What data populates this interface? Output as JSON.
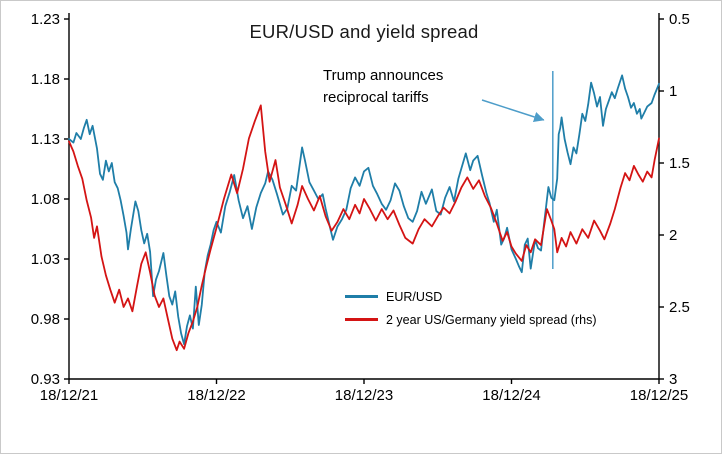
{
  "frame": {
    "background": "#ffffff",
    "border_color": "#c9c9c9"
  },
  "chart_data": {
    "type": "line",
    "title": "EUR/USD and yield spread",
    "grid": false,
    "legend_position": "inside-bottom-center",
    "x_axis": {
      "min": 0,
      "max": 4,
      "tick_positions": [
        0,
        1,
        2,
        3,
        4
      ],
      "tick_labels": [
        "18/12/21",
        "18/12/22",
        "18/12/23",
        "18/12/24",
        "18/12/25"
      ]
    },
    "left_axis": {
      "min": 0.93,
      "max": 1.23,
      "tick_values": [
        1.23,
        1.18,
        1.13,
        1.08,
        1.03,
        0.98,
        0.93
      ],
      "tick_labels": [
        "1.23",
        "1.18",
        "1.13",
        "1.08",
        "1.03",
        "0.98",
        "0.93"
      ]
    },
    "right_axis": {
      "min": 0.5,
      "max": 3,
      "inverted_display": true,
      "tick_values": [
        0.5,
        1,
        1.5,
        2,
        2.5,
        3
      ],
      "tick_labels": [
        "0.5",
        "1",
        "1.5",
        "2",
        "2.5",
        "3"
      ]
    },
    "annotation": {
      "line1": "Trump announces",
      "line2": "reciprocal tariffs",
      "event_x": 3.28,
      "color": "#4D9DC9"
    },
    "series": [
      {
        "name": "EUR/USD",
        "axis": "left",
        "color": "#1F7EA8",
        "points": [
          [
            0,
            1.13
          ],
          [
            0.03,
            1.127
          ],
          [
            0.05,
            1.135
          ],
          [
            0.08,
            1.13
          ],
          [
            0.1,
            1.139
          ],
          [
            0.12,
            1.146
          ],
          [
            0.14,
            1.134
          ],
          [
            0.16,
            1.141
          ],
          [
            0.19,
            1.122
          ],
          [
            0.21,
            1.101
          ],
          [
            0.23,
            1.096
          ],
          [
            0.25,
            1.112
          ],
          [
            0.27,
            1.103
          ],
          [
            0.29,
            1.11
          ],
          [
            0.31,
            1.094
          ],
          [
            0.33,
            1.089
          ],
          [
            0.35,
            1.079
          ],
          [
            0.37,
            1.066
          ],
          [
            0.39,
            1.052
          ],
          [
            0.4,
            1.038
          ],
          [
            0.42,
            1.055
          ],
          [
            0.45,
            1.078
          ],
          [
            0.47,
            1.07
          ],
          [
            0.49,
            1.054
          ],
          [
            0.51,
            1.043
          ],
          [
            0.53,
            1.051
          ],
          [
            0.55,
            1.036
          ],
          [
            0.57,
            0.999
          ],
          [
            0.59,
            1.013
          ],
          [
            0.61,
            1.02
          ],
          [
            0.64,
            1.035
          ],
          [
            0.66,
            1.016
          ],
          [
            0.68,
            0.999
          ],
          [
            0.7,
            0.992
          ],
          [
            0.72,
            1.003
          ],
          [
            0.74,
            0.982
          ],
          [
            0.76,
            0.968
          ],
          [
            0.78,
            0.959
          ],
          [
            0.8,
            0.974
          ],
          [
            0.82,
            0.983
          ],
          [
            0.84,
            0.972
          ],
          [
            0.86,
            1.007
          ],
          [
            0.88,
            0.975
          ],
          [
            0.9,
            0.992
          ],
          [
            0.92,
            1.019
          ],
          [
            0.94,
            1.033
          ],
          [
            0.96,
            1.042
          ],
          [
            0.98,
            1.054
          ],
          [
            1.0,
            1.061
          ],
          [
            1.03,
            1.052
          ],
          [
            1.06,
            1.074
          ],
          [
            1.09,
            1.086
          ],
          [
            1.12,
            1.1
          ],
          [
            1.15,
            1.079
          ],
          [
            1.18,
            1.064
          ],
          [
            1.21,
            1.074
          ],
          [
            1.24,
            1.055
          ],
          [
            1.27,
            1.073
          ],
          [
            1.3,
            1.085
          ],
          [
            1.33,
            1.093
          ],
          [
            1.35,
            1.103
          ],
          [
            1.38,
            1.096
          ],
          [
            1.41,
            1.084
          ],
          [
            1.45,
            1.067
          ],
          [
            1.48,
            1.072
          ],
          [
            1.51,
            1.091
          ],
          [
            1.54,
            1.087
          ],
          [
            1.58,
            1.123
          ],
          [
            1.6,
            1.112
          ],
          [
            1.63,
            1.094
          ],
          [
            1.66,
            1.087
          ],
          [
            1.69,
            1.08
          ],
          [
            1.72,
            1.084
          ],
          [
            1.74,
            1.072
          ],
          [
            1.77,
            1.056
          ],
          [
            1.79,
            1.046
          ],
          [
            1.82,
            1.057
          ],
          [
            1.85,
            1.063
          ],
          [
            1.88,
            1.071
          ],
          [
            1.91,
            1.089
          ],
          [
            1.94,
            1.098
          ],
          [
            1.97,
            1.091
          ],
          [
            2.0,
            1.103
          ],
          [
            2.03,
            1.106
          ],
          [
            2.06,
            1.091
          ],
          [
            2.09,
            1.084
          ],
          [
            2.12,
            1.076
          ],
          [
            2.15,
            1.071
          ],
          [
            2.18,
            1.079
          ],
          [
            2.21,
            1.093
          ],
          [
            2.24,
            1.087
          ],
          [
            2.27,
            1.074
          ],
          [
            2.3,
            1.064
          ],
          [
            2.33,
            1.061
          ],
          [
            2.36,
            1.07
          ],
          [
            2.39,
            1.086
          ],
          [
            2.42,
            1.076
          ],
          [
            2.46,
            1.088
          ],
          [
            2.49,
            1.07
          ],
          [
            2.52,
            1.067
          ],
          [
            2.55,
            1.081
          ],
          [
            2.58,
            1.09
          ],
          [
            2.61,
            1.078
          ],
          [
            2.64,
            1.097
          ],
          [
            2.69,
            1.118
          ],
          [
            2.72,
            1.104
          ],
          [
            2.74,
            1.112
          ],
          [
            2.77,
            1.116
          ],
          [
            2.8,
            1.1
          ],
          [
            2.83,
            1.085
          ],
          [
            2.85,
            1.077
          ],
          [
            2.88,
            1.061
          ],
          [
            2.9,
            1.071
          ],
          [
            2.93,
            1.042
          ],
          [
            2.95,
            1.047
          ],
          [
            2.97,
            1.056
          ],
          [
            3.0,
            1.038
          ],
          [
            3.03,
            1.03
          ],
          [
            3.05,
            1.024
          ],
          [
            3.07,
            1.019
          ],
          [
            3.09,
            1.042
          ],
          [
            3.11,
            1.047
          ],
          [
            3.13,
            1.022
          ],
          [
            3.16,
            1.046
          ],
          [
            3.18,
            1.039
          ],
          [
            3.2,
            1.037
          ],
          [
            3.22,
            1.059
          ],
          [
            3.25,
            1.09
          ],
          [
            3.27,
            1.081
          ],
          [
            3.29,
            1.079
          ],
          [
            3.31,
            1.097
          ],
          [
            3.32,
            1.134
          ],
          [
            3.33,
            1.139
          ],
          [
            3.34,
            1.148
          ],
          [
            3.36,
            1.13
          ],
          [
            3.38,
            1.119
          ],
          [
            3.4,
            1.109
          ],
          [
            3.42,
            1.123
          ],
          [
            3.44,
            1.118
          ],
          [
            3.46,
            1.134
          ],
          [
            3.48,
            1.151
          ],
          [
            3.5,
            1.145
          ],
          [
            3.52,
            1.159
          ],
          [
            3.54,
            1.177
          ],
          [
            3.56,
            1.168
          ],
          [
            3.58,
            1.157
          ],
          [
            3.6,
            1.165
          ],
          [
            3.62,
            1.141
          ],
          [
            3.64,
            1.155
          ],
          [
            3.66,
            1.162
          ],
          [
            3.68,
            1.169
          ],
          [
            3.7,
            1.164
          ],
          [
            3.72,
            1.172
          ],
          [
            3.75,
            1.183
          ],
          [
            3.77,
            1.172
          ],
          [
            3.79,
            1.165
          ],
          [
            3.81,
            1.156
          ],
          [
            3.83,
            1.16
          ],
          [
            3.85,
            1.151
          ],
          [
            3.87,
            1.155
          ],
          [
            3.88,
            1.147
          ],
          [
            3.9,
            1.152
          ],
          [
            3.92,
            1.157
          ],
          [
            3.95,
            1.16
          ],
          [
            3.97,
            1.167
          ],
          [
            4.0,
            1.176
          ]
        ]
      },
      {
        "name": "2 year US/Germany yield spread (rhs)",
        "axis": "right",
        "color": "#D41414",
        "points": [
          [
            0,
            1.35
          ],
          [
            0.03,
            1.42
          ],
          [
            0.06,
            1.52
          ],
          [
            0.09,
            1.61
          ],
          [
            0.12,
            1.76
          ],
          [
            0.15,
            1.88
          ],
          [
            0.17,
            2.02
          ],
          [
            0.19,
            1.94
          ],
          [
            0.22,
            2.15
          ],
          [
            0.25,
            2.28
          ],
          [
            0.28,
            2.38
          ],
          [
            0.31,
            2.47
          ],
          [
            0.34,
            2.38
          ],
          [
            0.37,
            2.5
          ],
          [
            0.4,
            2.44
          ],
          [
            0.43,
            2.53
          ],
          [
            0.46,
            2.36
          ],
          [
            0.49,
            2.2
          ],
          [
            0.52,
            2.12
          ],
          [
            0.55,
            2.26
          ],
          [
            0.58,
            2.42
          ],
          [
            0.61,
            2.5
          ],
          [
            0.64,
            2.44
          ],
          [
            0.67,
            2.58
          ],
          [
            0.7,
            2.72
          ],
          [
            0.73,
            2.8
          ],
          [
            0.75,
            2.74
          ],
          [
            0.78,
            2.79
          ],
          [
            0.81,
            2.68
          ],
          [
            0.84,
            2.6
          ],
          [
            0.87,
            2.5
          ],
          [
            0.9,
            2.35
          ],
          [
            0.93,
            2.22
          ],
          [
            0.96,
            2.1
          ],
          [
            1.0,
            1.95
          ],
          [
            1.05,
            1.75
          ],
          [
            1.1,
            1.58
          ],
          [
            1.14,
            1.71
          ],
          [
            1.18,
            1.54
          ],
          [
            1.22,
            1.33
          ],
          [
            1.26,
            1.21
          ],
          [
            1.3,
            1.1
          ],
          [
            1.33,
            1.42
          ],
          [
            1.36,
            1.63
          ],
          [
            1.4,
            1.48
          ],
          [
            1.43,
            1.67
          ],
          [
            1.47,
            1.79
          ],
          [
            1.51,
            1.92
          ],
          [
            1.55,
            1.79
          ],
          [
            1.58,
            1.66
          ],
          [
            1.62,
            1.75
          ],
          [
            1.66,
            1.83
          ],
          [
            1.7,
            1.73
          ],
          [
            1.74,
            1.87
          ],
          [
            1.78,
            1.97
          ],
          [
            1.82,
            1.91
          ],
          [
            1.86,
            1.82
          ],
          [
            1.9,
            1.89
          ],
          [
            1.94,
            1.79
          ],
          [
            1.97,
            1.85
          ],
          [
            2.0,
            1.75
          ],
          [
            2.04,
            1.82
          ],
          [
            2.08,
            1.9
          ],
          [
            2.12,
            1.82
          ],
          [
            2.16,
            1.89
          ],
          [
            2.2,
            1.83
          ],
          [
            2.24,
            1.93
          ],
          [
            2.28,
            2.02
          ],
          [
            2.33,
            2.06
          ],
          [
            2.37,
            1.96
          ],
          [
            2.41,
            1.89
          ],
          [
            2.46,
            1.94
          ],
          [
            2.5,
            1.87
          ],
          [
            2.54,
            1.81
          ],
          [
            2.58,
            1.85
          ],
          [
            2.62,
            1.77
          ],
          [
            2.66,
            1.67
          ],
          [
            2.7,
            1.6
          ],
          [
            2.74,
            1.68
          ],
          [
            2.78,
            1.62
          ],
          [
            2.82,
            1.73
          ],
          [
            2.86,
            1.81
          ],
          [
            2.9,
            1.92
          ],
          [
            2.94,
            2.04
          ],
          [
            2.97,
            1.98
          ],
          [
            3.0,
            2.08
          ],
          [
            3.03,
            2.13
          ],
          [
            3.07,
            2.18
          ],
          [
            3.1,
            2.07
          ],
          [
            3.13,
            2.12
          ],
          [
            3.16,
            2.03
          ],
          [
            3.2,
            2.07
          ],
          [
            3.24,
            1.82
          ],
          [
            3.27,
            1.9
          ],
          [
            3.29,
            1.96
          ],
          [
            3.31,
            2.12
          ],
          [
            3.34,
            2.02
          ],
          [
            3.37,
            2.08
          ],
          [
            3.4,
            1.98
          ],
          [
            3.44,
            2.06
          ],
          [
            3.48,
            1.96
          ],
          [
            3.52,
            2.02
          ],
          [
            3.56,
            1.9
          ],
          [
            3.6,
            1.97
          ],
          [
            3.63,
            2.03
          ],
          [
            3.67,
            1.92
          ],
          [
            3.7,
            1.82
          ],
          [
            3.74,
            1.67
          ],
          [
            3.77,
            1.57
          ],
          [
            3.8,
            1.62
          ],
          [
            3.83,
            1.52
          ],
          [
            3.86,
            1.58
          ],
          [
            3.89,
            1.63
          ],
          [
            3.92,
            1.56
          ],
          [
            3.95,
            1.6
          ],
          [
            3.97,
            1.48
          ],
          [
            4.0,
            1.33
          ]
        ]
      }
    ]
  }
}
